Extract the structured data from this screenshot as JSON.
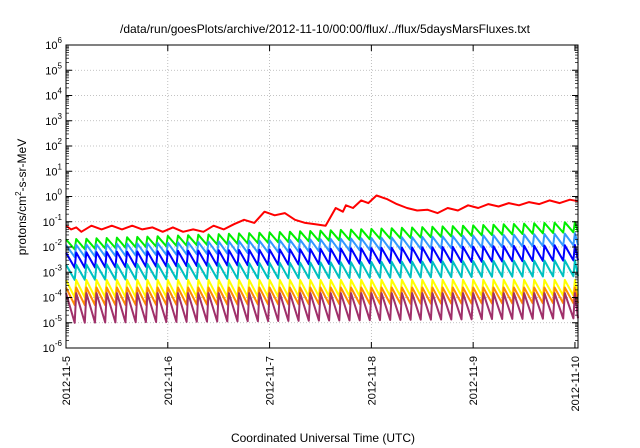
{
  "chart_data": {
    "type": "line",
    "title": "/data/run/goesPlots/archive/2012-11-10/00:00/flux/../flux/5daysMarsFluxes.txt",
    "xlabel": "Coordinated Universal Time (UTC)",
    "ylabel": "protons/cm2-s-sr-MeV",
    "ylabel_base": "protons/cm",
    "ylabel_sup": "2",
    "ylabel_rest": "-s-sr-MeV",
    "x_ticks": [
      "2012-11-5",
      "2012-11-6",
      "2012-11-7",
      "2012-11-8",
      "2012-11-9",
      "2012-11-10"
    ],
    "x_range_days": [
      0,
      5.03
    ],
    "y_scale": "log",
    "y_tick_exponents": [
      -6,
      -5,
      -4,
      -3,
      -2,
      -1,
      0,
      1,
      2,
      3,
      4,
      5,
      6
    ],
    "ylim": [
      1e-06,
      1000000.0
    ],
    "grid": true,
    "legend": "none",
    "series": [
      {
        "color": "#ff0000",
        "sawtooth": false,
        "x": [
          0,
          0.05,
          0.1,
          0.15,
          0.25,
          0.35,
          0.45,
          0.55,
          0.65,
          0.75,
          0.85,
          0.95,
          1.05,
          1.15,
          1.25,
          1.35,
          1.45,
          1.55,
          1.65,
          1.75,
          1.85,
          1.95,
          2.05,
          2.15,
          2.25,
          2.35,
          2.45,
          2.55,
          2.65,
          2.72,
          2.75,
          2.82,
          2.9,
          2.97,
          3.05,
          3.15,
          3.25,
          3.35,
          3.45,
          3.55,
          3.65,
          3.75,
          3.85,
          3.95,
          4.05,
          4.15,
          4.25,
          4.35,
          4.45,
          4.55,
          4.65,
          4.75,
          4.85,
          4.95,
          5.03
        ],
        "y": [
          0.07,
          0.05,
          0.06,
          0.04,
          0.07,
          0.05,
          0.07,
          0.05,
          0.07,
          0.05,
          0.06,
          0.04,
          0.06,
          0.04,
          0.05,
          0.04,
          0.07,
          0.05,
          0.08,
          0.12,
          0.09,
          0.25,
          0.18,
          0.22,
          0.12,
          0.09,
          0.08,
          0.07,
          0.35,
          0.25,
          0.45,
          0.35,
          0.7,
          0.55,
          1.1,
          0.8,
          0.5,
          0.35,
          0.28,
          0.3,
          0.22,
          0.35,
          0.28,
          0.45,
          0.35,
          0.5,
          0.4,
          0.55,
          0.45,
          0.6,
          0.5,
          0.7,
          0.55,
          0.75,
          0.65
        ]
      },
      {
        "color": "#00ee00",
        "sawtooth": true,
        "high_start": 0.02,
        "low_start": 0.008,
        "high_end": 0.1,
        "low_end": 0.04
      },
      {
        "color": "#3399ff",
        "sawtooth": true,
        "high_start": 0.012,
        "low_start": 0.004,
        "high_end": 0.035,
        "low_end": 0.012
      },
      {
        "color": "#0000ff",
        "sawtooth": true,
        "high_start": 0.006,
        "low_start": 0.0015,
        "high_end": 0.012,
        "low_end": 0.003
      },
      {
        "color": "#00c0c0",
        "sawtooth": true,
        "high_start": 0.002,
        "low_start": 0.0005,
        "high_end": 0.003,
        "low_end": 0.0007
      },
      {
        "color": "#ffff00",
        "sawtooth": true,
        "high_start": 0.0005,
        "low_start": 0.0001,
        "high_end": 0.0005,
        "low_end": 0.00012
      },
      {
        "color": "#ff8c00",
        "sawtooth": true,
        "high_start": 0.00025,
        "low_start": 5e-05,
        "high_end": 0.00025,
        "low_end": 6e-05
      },
      {
        "color": "#a0306a",
        "sawtooth": true,
        "high_start": 0.00015,
        "low_start": 1e-05,
        "high_end": 0.00015,
        "low_end": 1.5e-05
      }
    ]
  }
}
